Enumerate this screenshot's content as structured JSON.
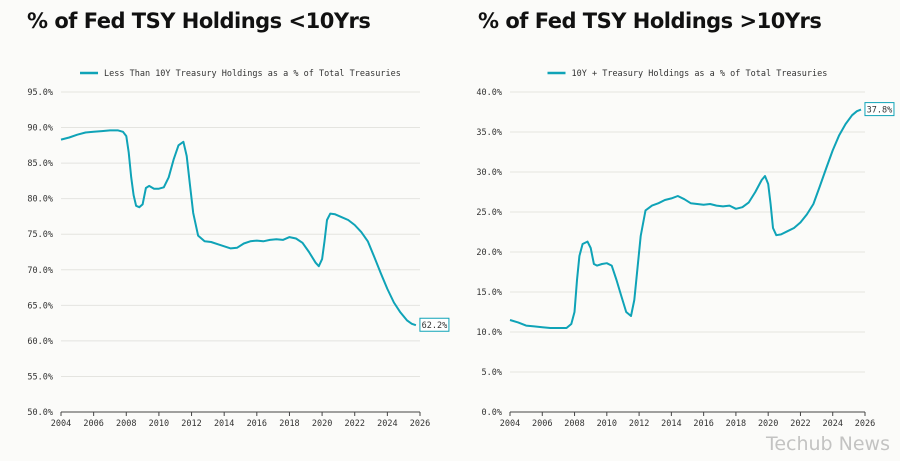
{
  "colors": {
    "series": "#0fa3b7",
    "grid": "#e4e4e0",
    "axis": "#444444"
  },
  "chart_data": [
    {
      "type": "line",
      "title": "% of Fed TSY Holdings <10Yrs",
      "series": [
        {
          "name": "Less Than 10Y Treasury Holdings as a % of Total Treasuries",
          "points": [
            [
              2004.0,
              88.3
            ],
            [
              2004.5,
              88.6
            ],
            [
              2005.0,
              89.0
            ],
            [
              2005.5,
              89.3
            ],
            [
              2006.0,
              89.4
            ],
            [
              2006.5,
              89.5
            ],
            [
              2007.0,
              89.6
            ],
            [
              2007.5,
              89.6
            ],
            [
              2007.8,
              89.4
            ],
            [
              2008.0,
              88.8
            ],
            [
              2008.15,
              86.5
            ],
            [
              2008.3,
              83.0
            ],
            [
              2008.45,
              80.5
            ],
            [
              2008.6,
              79.0
            ],
            [
              2008.8,
              78.8
            ],
            [
              2009.0,
              79.2
            ],
            [
              2009.2,
              81.5
            ],
            [
              2009.4,
              81.8
            ],
            [
              2009.7,
              81.4
            ],
            [
              2010.0,
              81.4
            ],
            [
              2010.3,
              81.6
            ],
            [
              2010.6,
              83.0
            ],
            [
              2010.9,
              85.5
            ],
            [
              2011.2,
              87.5
            ],
            [
              2011.5,
              88.0
            ],
            [
              2011.7,
              86.0
            ],
            [
              2011.9,
              82.0
            ],
            [
              2012.1,
              78.0
            ],
            [
              2012.4,
              74.8
            ],
            [
              2012.8,
              74.0
            ],
            [
              2013.2,
              73.9
            ],
            [
              2013.6,
              73.6
            ],
            [
              2014.0,
              73.3
            ],
            [
              2014.4,
              73.0
            ],
            [
              2014.8,
              73.1
            ],
            [
              2015.2,
              73.7
            ],
            [
              2015.6,
              74.0
            ],
            [
              2016.0,
              74.1
            ],
            [
              2016.4,
              74.0
            ],
            [
              2016.8,
              74.2
            ],
            [
              2017.2,
              74.3
            ],
            [
              2017.6,
              74.2
            ],
            [
              2018.0,
              74.6
            ],
            [
              2018.4,
              74.4
            ],
            [
              2018.8,
              73.8
            ],
            [
              2019.2,
              72.5
            ],
            [
              2019.6,
              71.0
            ],
            [
              2019.8,
              70.5
            ],
            [
              2020.0,
              71.5
            ],
            [
              2020.15,
              74.0
            ],
            [
              2020.3,
              77.0
            ],
            [
              2020.5,
              77.9
            ],
            [
              2020.8,
              77.8
            ],
            [
              2021.2,
              77.4
            ],
            [
              2021.6,
              77.0
            ],
            [
              2022.0,
              76.3
            ],
            [
              2022.4,
              75.3
            ],
            [
              2022.8,
              74.0
            ],
            [
              2023.2,
              71.8
            ],
            [
              2023.6,
              69.5
            ],
            [
              2024.0,
              67.3
            ],
            [
              2024.4,
              65.4
            ],
            [
              2024.8,
              64.0
            ],
            [
              2025.2,
              62.9
            ],
            [
              2025.5,
              62.4
            ],
            [
              2025.75,
              62.2
            ]
          ],
          "end_label": "62.2%"
        }
      ],
      "x_ticks": [
        "2004",
        "2006",
        "2008",
        "2010",
        "2012",
        "2014",
        "2016",
        "2018",
        "2020",
        "2022",
        "2024",
        "2026"
      ],
      "y_ticks": [
        "95.0%",
        "90.0%",
        "85.0%",
        "80.0%",
        "75.0%",
        "70.0%",
        "65.0%",
        "60.0%",
        "55.0%",
        "50.0%"
      ],
      "xlim": [
        2004,
        2026
      ],
      "ylim": [
        50,
        95
      ],
      "grid": "horizontal",
      "legend": "top-center"
    },
    {
      "type": "line",
      "title": "% of Fed TSY Holdings >10Yrs",
      "series": [
        {
          "name": "10Y + Treasury Holdings as a % of Total Treasuries",
          "points": [
            [
              2004.0,
              11.5
            ],
            [
              2004.5,
              11.2
            ],
            [
              2005.0,
              10.8
            ],
            [
              2005.5,
              10.7
            ],
            [
              2006.0,
              10.6
            ],
            [
              2006.5,
              10.5
            ],
            [
              2007.0,
              10.5
            ],
            [
              2007.5,
              10.5
            ],
            [
              2007.8,
              11.0
            ],
            [
              2008.0,
              12.5
            ],
            [
              2008.15,
              16.5
            ],
            [
              2008.3,
              19.5
            ],
            [
              2008.5,
              21.0
            ],
            [
              2008.8,
              21.3
            ],
            [
              2009.0,
              20.5
            ],
            [
              2009.2,
              18.5
            ],
            [
              2009.4,
              18.3
            ],
            [
              2009.7,
              18.5
            ],
            [
              2010.0,
              18.6
            ],
            [
              2010.3,
              18.3
            ],
            [
              2010.6,
              16.5
            ],
            [
              2010.9,
              14.5
            ],
            [
              2011.2,
              12.5
            ],
            [
              2011.5,
              12.0
            ],
            [
              2011.7,
              14.0
            ],
            [
              2011.9,
              18.0
            ],
            [
              2012.1,
              22.0
            ],
            [
              2012.4,
              25.2
            ],
            [
              2012.8,
              25.8
            ],
            [
              2013.2,
              26.1
            ],
            [
              2013.6,
              26.5
            ],
            [
              2014.0,
              26.7
            ],
            [
              2014.4,
              27.0
            ],
            [
              2014.8,
              26.6
            ],
            [
              2015.2,
              26.1
            ],
            [
              2015.6,
              26.0
            ],
            [
              2016.0,
              25.9
            ],
            [
              2016.4,
              26.0
            ],
            [
              2016.8,
              25.8
            ],
            [
              2017.2,
              25.7
            ],
            [
              2017.6,
              25.8
            ],
            [
              2018.0,
              25.4
            ],
            [
              2018.4,
              25.6
            ],
            [
              2018.8,
              26.2
            ],
            [
              2019.2,
              27.5
            ],
            [
              2019.6,
              29.0
            ],
            [
              2019.8,
              29.5
            ],
            [
              2020.0,
              28.5
            ],
            [
              2020.15,
              26.0
            ],
            [
              2020.3,
              23.0
            ],
            [
              2020.5,
              22.1
            ],
            [
              2020.8,
              22.2
            ],
            [
              2021.2,
              22.6
            ],
            [
              2021.6,
              23.0
            ],
            [
              2022.0,
              23.7
            ],
            [
              2022.4,
              24.7
            ],
            [
              2022.8,
              26.0
            ],
            [
              2023.2,
              28.2
            ],
            [
              2023.6,
              30.5
            ],
            [
              2024.0,
              32.7
            ],
            [
              2024.4,
              34.6
            ],
            [
              2024.8,
              36.0
            ],
            [
              2025.2,
              37.1
            ],
            [
              2025.5,
              37.6
            ],
            [
              2025.75,
              37.8
            ]
          ],
          "end_label": "37.8%"
        }
      ],
      "x_ticks": [
        "2004",
        "2006",
        "2008",
        "2010",
        "2012",
        "2014",
        "2016",
        "2018",
        "2020",
        "2022",
        "2024",
        "2026"
      ],
      "y_ticks": [
        "40.0%",
        "35.0%",
        "30.0%",
        "25.0%",
        "20.0%",
        "15.0%",
        "10.0%",
        "5.0%",
        "0.0%"
      ],
      "xlim": [
        2004,
        2026
      ],
      "ylim": [
        0,
        40
      ],
      "grid": "horizontal",
      "legend": "top-center"
    }
  ],
  "watermark": "Techub News"
}
